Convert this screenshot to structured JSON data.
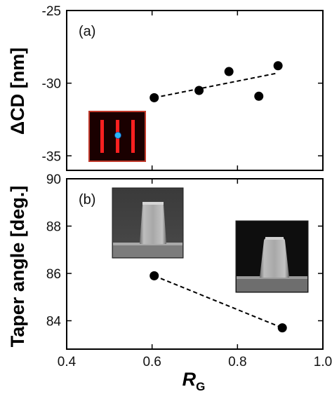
{
  "chart_data": [
    {
      "panel_label": "(a)",
      "type": "scatter",
      "ylabel": "ΔCD [nm]",
      "ylim": [
        -36,
        -25
      ],
      "yticks": [
        -25,
        -30,
        -35
      ],
      "xlim": [
        0.4,
        1.0
      ],
      "points": [
        {
          "x": 0.605,
          "y": -31.0
        },
        {
          "x": 0.71,
          "y": -30.5
        },
        {
          "x": 0.78,
          "y": -29.2
        },
        {
          "x": 0.85,
          "y": -30.9
        },
        {
          "x": 0.895,
          "y": -28.8
        }
      ],
      "fit_line": {
        "x": [
          0.605,
          0.895
        ],
        "y": [
          -31.0,
          -29.3
        ],
        "style": "dashed"
      },
      "inset": "layout-thumbnail",
      "colors": {
        "inset_bg": "#1a0000",
        "inset_border": "#c0392b",
        "inset_lines": "#ff2020",
        "inset_dot": "#29b6f6"
      }
    },
    {
      "panel_label": "(b)",
      "type": "scatter",
      "ylabel": "Taper angle [deg.]",
      "xlabel": "R",
      "xlabel_sub": "G",
      "ylim": [
        82.8,
        90
      ],
      "yticks": [
        84,
        86,
        88,
        90
      ],
      "xlim": [
        0.4,
        1.0
      ],
      "xticks": [
        0.4,
        0.6,
        0.8,
        1.0
      ],
      "xtick_labels": [
        "0.4",
        "0.6",
        "0.8",
        "1.0"
      ],
      "points": [
        {
          "x": 0.605,
          "y": 85.9
        },
        {
          "x": 0.905,
          "y": 83.7
        }
      ],
      "fit_line": {
        "x": [
          0.605,
          0.905
        ],
        "y": [
          85.9,
          83.7
        ],
        "style": "dashed"
      },
      "insets": [
        "sem-cross-section",
        "sem-cross-section"
      ]
    }
  ]
}
